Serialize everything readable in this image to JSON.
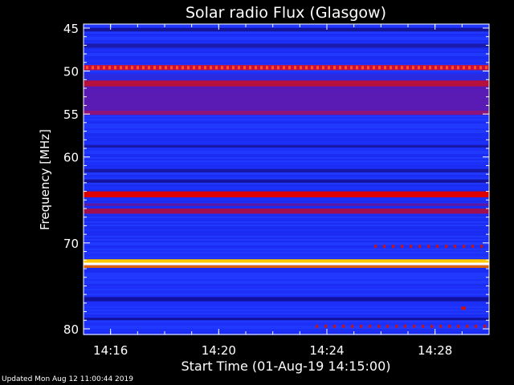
{
  "chart_data": {
    "type": "heatmap",
    "title": "Solar radio Flux (Glasgow)",
    "ylabel": "Frequency [MHz]",
    "xlabel": "Start Time (01-Aug-19 14:15:00)",
    "x_range": [
      "14:15:00",
      "14:30:00"
    ],
    "ylim": [
      45,
      80
    ],
    "y_axis_inverted": true,
    "x_ticks": [
      "14:16",
      "14:20",
      "14:24",
      "14:28"
    ],
    "y_ticks": [
      45,
      50,
      55,
      60,
      70,
      80
    ],
    "colormap": [
      "#0000c8",
      "#2020ff",
      "#6a20a0",
      "#d00000",
      "#ff3000",
      "#ffff80",
      "#ffffff"
    ],
    "background_color": "#1e32ff",
    "bands": [
      {
        "freq_from": 45.0,
        "freq_to": 45.4,
        "color": "#14149c"
      },
      {
        "freq_from": 46.8,
        "freq_to": 47.3,
        "color": "#1a1ab0"
      },
      {
        "freq_from": 49.3,
        "freq_to": 49.9,
        "color": "#c81040"
      },
      {
        "freq_from": 50.3,
        "freq_to": 51.1,
        "color": "#2a2ae0"
      },
      {
        "freq_from": 51.1,
        "freq_to": 51.8,
        "color": "#b8103c"
      },
      {
        "freq_from": 51.8,
        "freq_to": 52.3,
        "color": "#5a18b4"
      },
      {
        "freq_from": 52.3,
        "freq_to": 54.6,
        "color": "#5a1ab4"
      },
      {
        "freq_from": 54.6,
        "freq_to": 55.1,
        "color": "#8c147a"
      },
      {
        "freq_from": 58.6,
        "freq_to": 58.9,
        "color": "#1818a8"
      },
      {
        "freq_from": 61.4,
        "freq_to": 61.8,
        "color": "#1818a8"
      },
      {
        "freq_from": 62.6,
        "freq_to": 63.0,
        "color": "#1414a0"
      },
      {
        "freq_from": 64.0,
        "freq_to": 64.7,
        "color": "#dc0000"
      },
      {
        "freq_from": 65.4,
        "freq_to": 65.7,
        "color": "#6018a0"
      },
      {
        "freq_from": 66.0,
        "freq_to": 66.6,
        "color": "#a01050"
      },
      {
        "freq_from": 71.9,
        "freq_to": 72.3,
        "color": "#ffc800"
      },
      {
        "freq_from": 72.3,
        "freq_to": 72.6,
        "color": "#ffffff"
      },
      {
        "freq_from": 72.6,
        "freq_to": 72.9,
        "color": "#e06000"
      },
      {
        "freq_from": 76.3,
        "freq_to": 76.8,
        "color": "#1212a0"
      },
      {
        "freq_from": 78.7,
        "freq_to": 79.0,
        "color": "#1212a0"
      }
    ],
    "bursts": [
      {
        "time_from": "14:25:40",
        "time_to": "14:30:00",
        "freq": 70.4,
        "color": "#c81414",
        "pattern": "dotted"
      },
      {
        "time_from": "14:15:00",
        "time_to": "14:30:00",
        "freq": 49.6,
        "color": "#ff5020",
        "pattern": "dotted"
      },
      {
        "time_from": "14:23:30",
        "time_to": "14:30:00",
        "freq": 79.7,
        "color": "#c81414",
        "pattern": "dotted"
      },
      {
        "time_from": "14:29:00",
        "time_to": "14:29:10",
        "freq": 77.6,
        "color": "#d01010",
        "pattern": "spot"
      }
    ]
  },
  "footer": {
    "updated": "Updated Mon Aug 12 11:00:44 2019"
  }
}
